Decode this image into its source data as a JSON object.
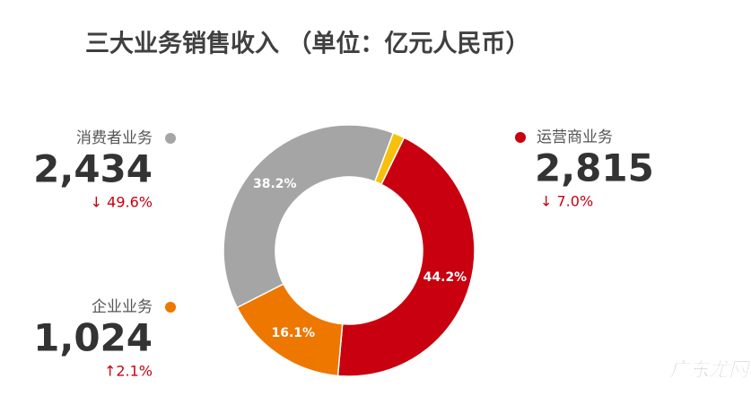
{
  "chart_data": {
    "type": "pie",
    "title": "三大业务销售收入 （单位：亿元人民币）",
    "categories": [
      "运营商业务",
      "企业业务",
      "消费者业务",
      null
    ],
    "values": [
      44.2,
      16.1,
      38.2,
      1.5
    ],
    "value_labels": [
      "44.2%",
      "16.1%",
      "38.2%",
      null
    ],
    "colors": [
      "#c8000f",
      "#ee7700",
      "#a5a5a5",
      "#f6c10c"
    ],
    "amounts": [
      {
        "value": 2815,
        "label": "2,815"
      },
      {
        "value": 1024,
        "label": "1,024"
      },
      {
        "value": 2434,
        "label": "2,434"
      },
      null
    ],
    "changes": [
      "↓ 7.0%",
      "↑2.1%",
      "↓ 49.6%",
      null
    ],
    "watermark": "广东龙网"
  }
}
